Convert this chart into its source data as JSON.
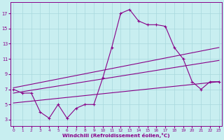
{
  "x": [
    0,
    1,
    2,
    3,
    4,
    5,
    6,
    7,
    8,
    9,
    10,
    11,
    12,
    13,
    14,
    15,
    16,
    17,
    18,
    19,
    20,
    21,
    22,
    23
  ],
  "windchill": [
    7.0,
    6.5,
    6.5,
    4.0,
    3.2,
    5.0,
    3.2,
    4.5,
    5.0,
    5.0,
    8.5,
    12.5,
    17.0,
    17.5,
    16.0,
    15.5,
    15.5,
    15.3,
    12.5,
    11.0,
    8.0,
    7.0,
    8.0,
    8.0
  ],
  "upper_line_x": [
    0,
    23
  ],
  "upper_line_y": [
    7.2,
    12.5
  ],
  "mid_line_x": [
    0,
    23
  ],
  "mid_line_y": [
    6.5,
    10.8
  ],
  "lower_line_x": [
    0,
    23
  ],
  "lower_line_y": [
    5.2,
    8.0
  ],
  "line_color": "#880088",
  "bg_color": "#c8eef0",
  "grid_color": "#a8d8dc",
  "xlabel": "Windchill (Refroidissement éolien,°C)",
  "yticks": [
    3,
    5,
    7,
    9,
    11,
    13,
    15,
    17
  ],
  "xticks": [
    0,
    1,
    2,
    3,
    4,
    5,
    6,
    7,
    8,
    9,
    10,
    11,
    12,
    13,
    14,
    15,
    16,
    17,
    18,
    19,
    20,
    21,
    22,
    23
  ],
  "ylim": [
    2.2,
    18.5
  ],
  "xlim": [
    -0.3,
    23.3
  ]
}
